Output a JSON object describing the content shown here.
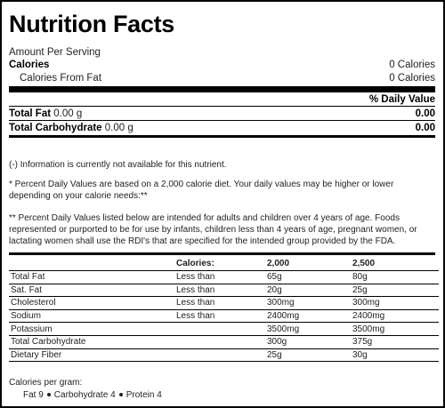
{
  "title": "Nutrition Facts",
  "amount_per_serving": "Amount Per Serving",
  "calories": {
    "label": "Calories",
    "value": "0 Calories"
  },
  "calories_from_fat": {
    "label": "Calories From Fat",
    "value": "0 Calories"
  },
  "daily_value_header": "% Daily Value",
  "nutrients": [
    {
      "name": "Total Fat",
      "amount": "0.00 g",
      "dv": "0.00"
    },
    {
      "name": "Total Carbohydrate",
      "amount": "0.00 g",
      "dv": "0.00"
    }
  ],
  "notes": {
    "not_available": "(-) Information is currently not available for this nutrient.",
    "footnote1": "* Percent Daily Values are based on a 2,000 calorie diet. Your daily values may be higher or lower depending on your calorie needs:**",
    "footnote2": "** Percent Daily Values listed below are intended for adults and children over 4 years of age. Foods represented or purported to be for use by infants, children less than 4 years of age, pregnant women, or lactating women shall use the RDI's that are specified for the intended group provided by the FDA."
  },
  "dv_table": {
    "headers": [
      "",
      "Calories:",
      "2,000",
      "2,500"
    ],
    "rows": [
      [
        "Total Fat",
        "Less than",
        "65g",
        "80g"
      ],
      [
        "Sat. Fat",
        "Less than",
        "20g",
        "25g"
      ],
      [
        "Cholesterol",
        "Less than",
        "300mg",
        "300mg"
      ],
      [
        "Sodium",
        "Less than",
        "2400mg",
        "2400mg"
      ],
      [
        "Potassium",
        "",
        "3500mg",
        "3500mg"
      ],
      [
        "Total Carbohydrate",
        "",
        "300g",
        "375g"
      ],
      [
        "Dietary Fiber",
        "",
        "25g",
        "30g"
      ]
    ]
  },
  "calories_per_gram": {
    "label": "Calories per gram:",
    "fat": "Fat 9",
    "carbohydrate": "Carbohydrate 4",
    "protein": "Protein 4"
  }
}
